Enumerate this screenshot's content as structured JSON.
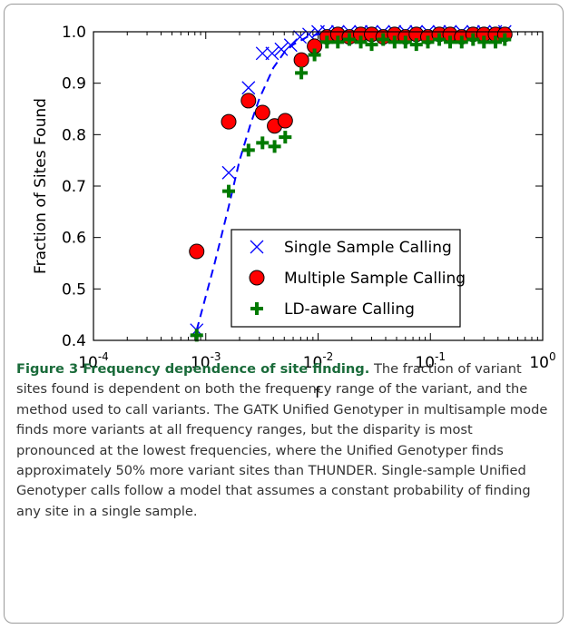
{
  "chart_data": {
    "type": "scatter",
    "x_label": "f",
    "y_label": "Fraction of Sites Found",
    "xscale": "log",
    "xlim": [
      0.0001,
      1
    ],
    "ylim": [
      0.4,
      1.0
    ],
    "xticks": [
      {
        "value": 0.0001,
        "label": "10",
        "exponent": "-4"
      },
      {
        "value": 0.001,
        "label": "10",
        "exponent": "-3"
      },
      {
        "value": 0.01,
        "label": "10",
        "exponent": "-2"
      },
      {
        "value": 0.1,
        "label": "10",
        "exponent": "-1"
      },
      {
        "value": 1,
        "label": "10",
        "exponent": "0"
      }
    ],
    "yticks": [
      {
        "value": 0.4,
        "label": "0.4"
      },
      {
        "value": 0.5,
        "label": "0.5"
      },
      {
        "value": 0.6,
        "label": "0.6"
      },
      {
        "value": 0.7,
        "label": "0.7"
      },
      {
        "value": 0.8,
        "label": "0.8"
      },
      {
        "value": 0.9,
        "label": "0.9"
      },
      {
        "value": 1.0,
        "label": "1.0"
      }
    ],
    "legend": "lower right",
    "model_line": {
      "color": "#0000ff",
      "x": [
        0.00083,
        0.0012,
        0.0016,
        0.002,
        0.0025,
        0.003,
        0.004,
        0.005,
        0.006,
        0.008,
        0.01,
        0.015,
        0.02,
        0.05,
        0.1,
        0.5
      ],
      "values": [
        0.42,
        0.55,
        0.66,
        0.75,
        0.82,
        0.87,
        0.93,
        0.96,
        0.975,
        0.99,
        0.995,
        1.0,
        1.0,
        1.0,
        1.0,
        1.0
      ]
    },
    "series": [
      {
        "name": "Single Sample Calling",
        "color": "#0000ff",
        "marker": "x",
        "x": [
          0.00083,
          0.0016,
          0.0024,
          0.0032,
          0.0039,
          0.0047,
          0.0057,
          0.0069,
          0.0083,
          0.01,
          0.012,
          0.015,
          0.019,
          0.024,
          0.03,
          0.038,
          0.048,
          0.06,
          0.075,
          0.095,
          0.12,
          0.15,
          0.19,
          0.24,
          0.3,
          0.38,
          0.46
        ],
        "values": [
          0.42,
          0.726,
          0.891,
          0.958,
          0.958,
          0.966,
          0.974,
          0.99,
          0.995,
          1.0,
          1.0,
          1.0,
          1.0,
          1.0,
          1.0,
          1.0,
          1.0,
          1.0,
          1.0,
          1.0,
          1.0,
          1.0,
          1.0,
          1.0,
          1.0,
          1.0,
          1.0
        ]
      },
      {
        "name": "Multiple Sample Calling",
        "color": "#ff0000",
        "marker": "o",
        "x": [
          0.00083,
          0.0016,
          0.0024,
          0.0032,
          0.0041,
          0.0051,
          0.0071,
          0.0093,
          0.012,
          0.015,
          0.019,
          0.024,
          0.03,
          0.038,
          0.048,
          0.06,
          0.075,
          0.095,
          0.12,
          0.15,
          0.19,
          0.24,
          0.3,
          0.38,
          0.46
        ],
        "values": [
          0.573,
          0.825,
          0.866,
          0.843,
          0.817,
          0.827,
          0.945,
          0.972,
          0.99,
          0.995,
          0.99,
          0.995,
          0.995,
          0.99,
          0.995,
          0.99,
          0.995,
          0.99,
          0.995,
          0.995,
          0.99,
          0.995,
          0.995,
          0.995,
          0.995
        ]
      },
      {
        "name": "LD-aware Calling",
        "color": "#007a00",
        "marker": "+",
        "x": [
          0.00083,
          0.0016,
          0.0024,
          0.0032,
          0.0041,
          0.0051,
          0.0071,
          0.0093,
          0.012,
          0.015,
          0.019,
          0.024,
          0.03,
          0.038,
          0.048,
          0.06,
          0.075,
          0.095,
          0.12,
          0.15,
          0.19,
          0.24,
          0.3,
          0.38,
          0.46
        ],
        "values": [
          0.41,
          0.69,
          0.77,
          0.784,
          0.777,
          0.795,
          0.92,
          0.955,
          0.98,
          0.98,
          0.985,
          0.98,
          0.975,
          0.985,
          0.98,
          0.98,
          0.975,
          0.98,
          0.985,
          0.98,
          0.98,
          0.985,
          0.98,
          0.98,
          0.985
        ]
      }
    ],
    "caption_title": "Figure 3 Frequency dependence of site finding.",
    "caption_text": "The fraction of variant sites found is dependent on both the frequency range of the variant, and the method used to call variants. The GATK Unified Genotyper in multisample mode finds more variants at all frequency ranges, but the disparity is most pronounced at the lowest frequencies, where the Unified Genotyper finds approximately 50% more variant sites than THUNDER. Single-sample Unified Genotyper calls follow a model that assumes a constant probability of finding any site in a single sample."
  }
}
